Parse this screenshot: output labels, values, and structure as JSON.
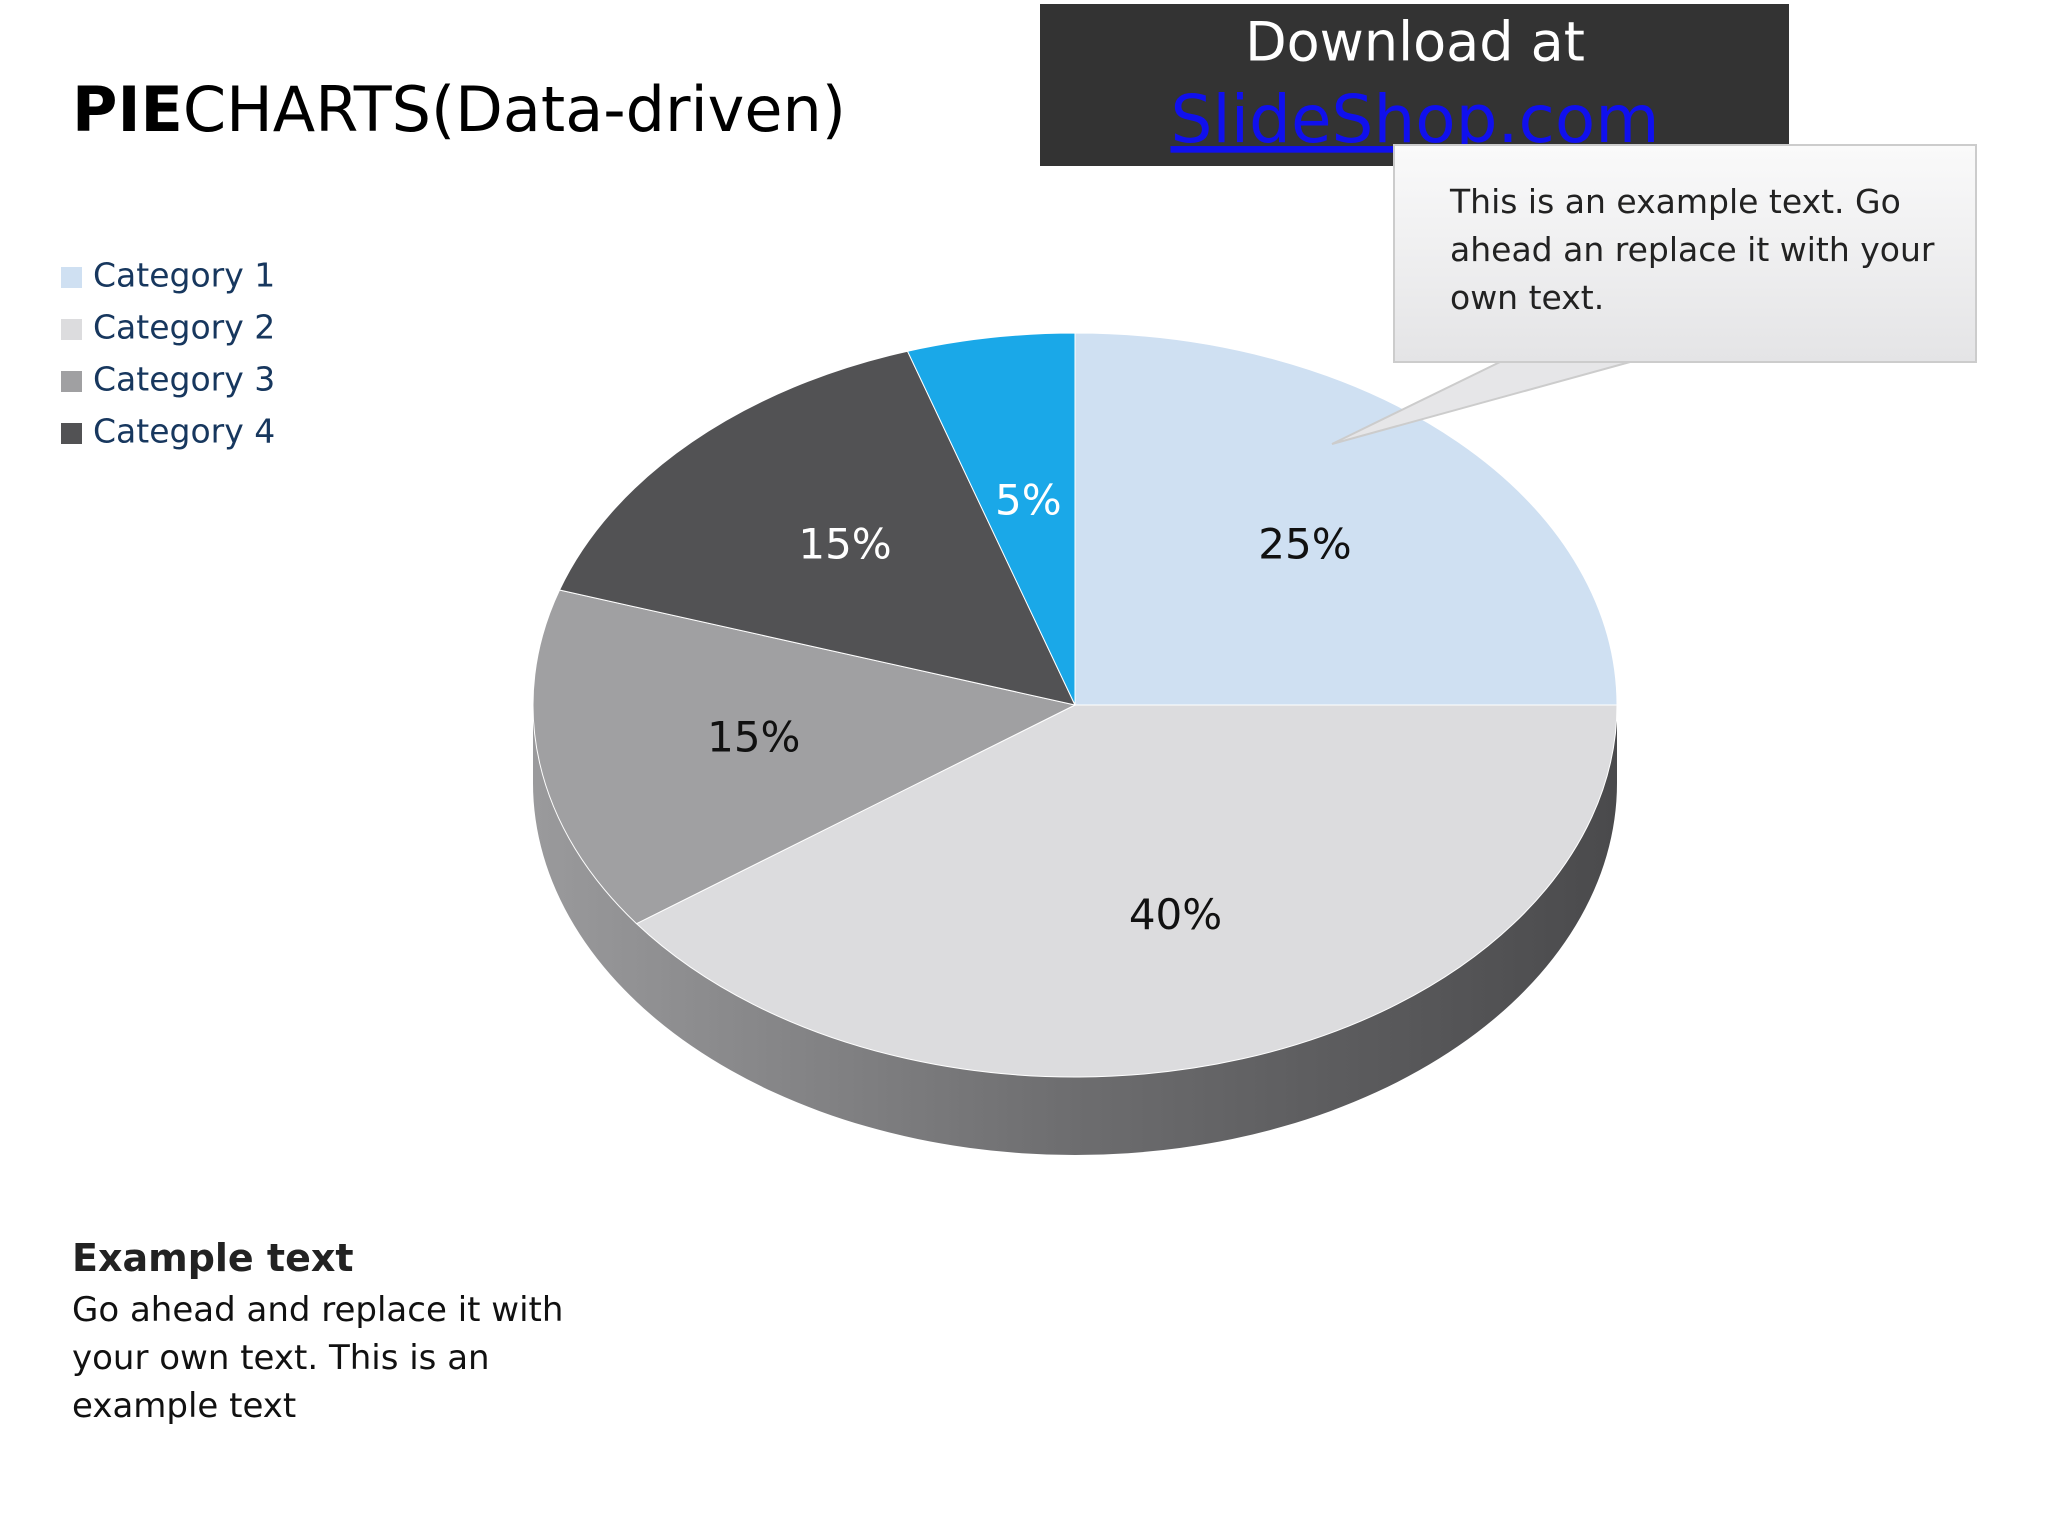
{
  "title_parts": [
    "PIE",
    "CHARTS(Data-driven)"
  ],
  "banner": {
    "line1": "Download at",
    "link": "SlideShop.com"
  },
  "callout": "This is an example text. Go ahead an replace it with your own text.",
  "example": {
    "heading": "Example text",
    "body": "Go ahead and replace it with your own text. This is an example text"
  },
  "chart_data": {
    "type": "pie",
    "categories": [
      "Category 1",
      "Category 2",
      "Category 3",
      "Category 4",
      null
    ],
    "values": [
      25,
      40,
      15,
      15,
      5
    ],
    "value_labels": [
      "25%",
      "40%",
      "15%",
      "15%",
      "5%"
    ],
    "colors": [
      "#cfe0f2",
      "#dcdcde",
      "#a0a0a2",
      "#525254",
      "#1aa8e8"
    ],
    "legend": "top-left"
  }
}
